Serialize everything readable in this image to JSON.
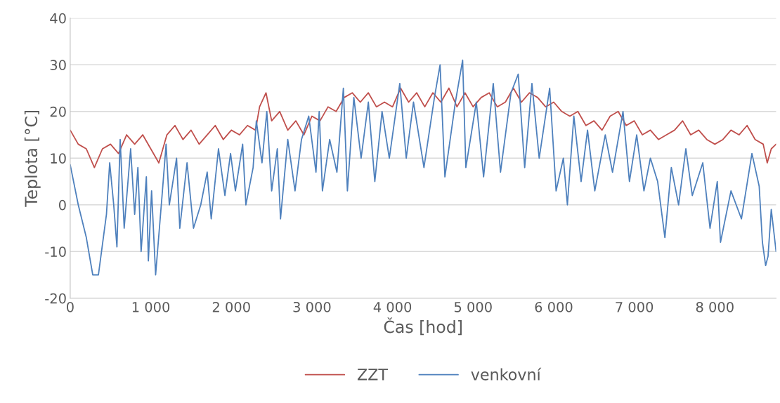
{
  "chart_data": {
    "type": "line",
    "xlabel": "Čas [hod]",
    "ylabel": "Teplota [°C]",
    "xlim": [
      0,
      8760
    ],
    "xticks": [
      0,
      {
        "value": 1000,
        "label": "1 000"
      },
      {
        "value": 2000,
        "label": "2 000"
      },
      {
        "value": 3000,
        "label": "3 000"
      },
      {
        "value": 4000,
        "label": "4 000"
      },
      {
        "value": 5000,
        "label": "5 000"
      },
      {
        "value": 6000,
        "label": "6 000"
      },
      {
        "value": 7000,
        "label": "7 000"
      },
      {
        "value": 8000,
        "label": "8 000"
      }
    ],
    "ylim": [
      -20,
      40
    ],
    "yticks": [
      -20,
      -10,
      0,
      10,
      20,
      30,
      40
    ],
    "grid": "y",
    "legend": "bottom",
    "marker": "none",
    "line_style": "solid",
    "series": [
      {
        "name": "ZZT",
        "color": "#c0504d",
        "x": [
          0,
          100,
          200,
          300,
          400,
          500,
          600,
          700,
          800,
          900,
          1000,
          1100,
          1200,
          1300,
          1400,
          1500,
          1600,
          1700,
          1800,
          1900,
          2000,
          2100,
          2200,
          2300,
          2350,
          2430,
          2500,
          2600,
          2700,
          2800,
          2900,
          3000,
          3100,
          3200,
          3300,
          3400,
          3500,
          3600,
          3700,
          3800,
          3900,
          4000,
          4100,
          4200,
          4300,
          4400,
          4500,
          4600,
          4700,
          4800,
          4900,
          5000,
          5100,
          5200,
          5300,
          5400,
          5500,
          5600,
          5700,
          5800,
          5900,
          6000,
          6100,
          6200,
          6300,
          6400,
          6500,
          6600,
          6700,
          6800,
          6900,
          7000,
          7100,
          7200,
          7300,
          7400,
          7500,
          7600,
          7700,
          7800,
          7900,
          8000,
          8100,
          8200,
          8300,
          8400,
          8500,
          8600,
          8650,
          8700,
          8760
        ],
        "values": [
          16,
          13,
          12,
          8,
          12,
          13,
          11,
          15,
          13,
          15,
          12,
          9,
          15,
          17,
          14,
          16,
          13,
          15,
          17,
          14,
          16,
          15,
          17,
          16,
          21,
          24,
          18,
          20,
          16,
          18,
          15,
          19,
          18,
          21,
          20,
          23,
          24,
          22,
          24,
          21,
          22,
          21,
          25,
          22,
          24,
          21,
          24,
          22,
          25,
          21,
          24,
          21,
          23,
          24,
          21,
          22,
          25,
          22,
          24,
          23,
          21,
          22,
          20,
          19,
          20,
          17,
          18,
          16,
          19,
          20,
          17,
          18,
          15,
          16,
          14,
          15,
          16,
          18,
          15,
          16,
          14,
          13,
          14,
          16,
          15,
          17,
          14,
          13,
          9,
          12,
          13
        ]
      },
      {
        "name": "venkovní",
        "color": "#4f81bd",
        "x": [
          0,
          100,
          200,
          280,
          350,
          450,
          490,
          540,
          580,
          620,
          670,
          750,
          800,
          840,
          880,
          945,
          970,
          1010,
          1060,
          1140,
          1190,
          1230,
          1320,
          1360,
          1450,
          1530,
          1620,
          1700,
          1750,
          1840,
          1920,
          1990,
          2050,
          2140,
          2180,
          2270,
          2310,
          2380,
          2440,
          2500,
          2570,
          2610,
          2700,
          2790,
          2870,
          2960,
          3050,
          3090,
          3130,
          3220,
          3310,
          3390,
          3440,
          3520,
          3610,
          3700,
          3780,
          3870,
          3960,
          4090,
          4170,
          4260,
          4390,
          4520,
          4590,
          4650,
          4780,
          4870,
          4910,
          5040,
          5130,
          5250,
          5340,
          5470,
          5560,
          5640,
          5730,
          5820,
          5950,
          6030,
          6120,
          6170,
          6250,
          6340,
          6420,
          6510,
          6640,
          6730,
          6860,
          6940,
          7030,
          7120,
          7200,
          7290,
          7380,
          7460,
          7550,
          7640,
          7720,
          7850,
          7940,
          8030,
          8070,
          8200,
          8330,
          8460,
          8550,
          8590,
          8630,
          8660,
          8700,
          8760
        ],
        "values": [
          8.6,
          0,
          -7,
          -15,
          -15,
          -2,
          9,
          0,
          -9,
          14,
          -5,
          12,
          -2,
          8,
          -10,
          6,
          -12,
          3,
          -15,
          2,
          13,
          0,
          10,
          -5,
          9,
          -5,
          0,
          7,
          -3,
          12,
          2,
          11,
          3,
          13,
          0,
          8,
          18,
          9,
          20,
          3,
          12,
          -3,
          14,
          3,
          14,
          19,
          7,
          20,
          3,
          14,
          7,
          25,
          3,
          23,
          10,
          22,
          5,
          20,
          10,
          26,
          10,
          22,
          8,
          23,
          30,
          6,
          22,
          31,
          8,
          22,
          6,
          26,
          7,
          24,
          28,
          8,
          26,
          10,
          25,
          3,
          10,
          0,
          19,
          5,
          16,
          3,
          15,
          7,
          20,
          5,
          15,
          3,
          10,
          5,
          -7,
          8,
          0,
          12,
          2,
          9,
          -5,
          5,
          -8,
          3,
          -3,
          11,
          4,
          -8,
          -13,
          -11,
          -1,
          -10
        ]
      }
    ]
  }
}
